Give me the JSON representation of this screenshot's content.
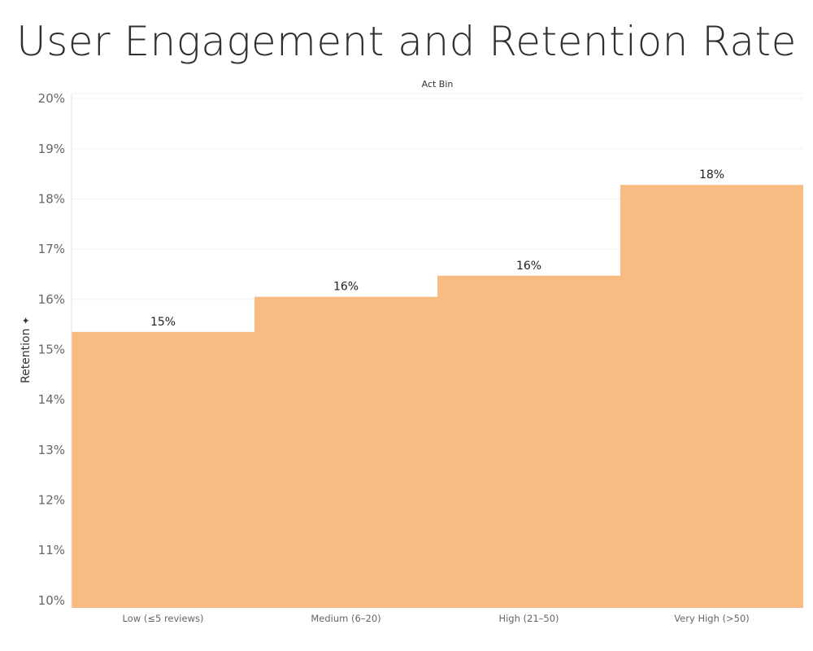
{
  "chart_data": {
    "type": "bar",
    "title": "User Engagement and Retention Rate",
    "column_header": "Act Bin",
    "xlabel": "",
    "ylabel": "Retention",
    "categories": [
      "Low (≤5 reviews)",
      "Medium (6–20)",
      "High (21–50)",
      "Very High (>50)"
    ],
    "values": [
      15.35,
      16.05,
      16.47,
      18.28
    ],
    "data_labels": [
      "15%",
      "16%",
      "16%",
      "18%"
    ],
    "ylim": [
      9.85,
      20.1
    ],
    "yticks": [
      10,
      11,
      12,
      13,
      14,
      15,
      16,
      17,
      18,
      19,
      20
    ],
    "ytick_labels": [
      "10%",
      "11%",
      "12%",
      "13%",
      "14%",
      "15%",
      "16%",
      "17%",
      "18%",
      "19%",
      "20%"
    ],
    "grid": true,
    "bar_color": "#f8bb82"
  }
}
